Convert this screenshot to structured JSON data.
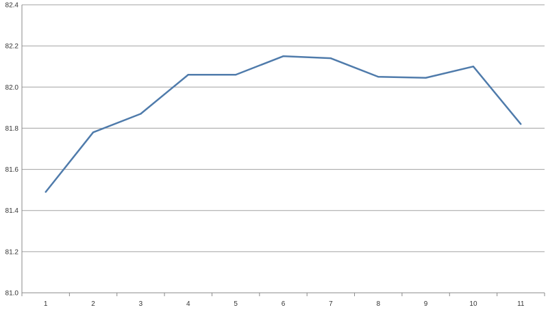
{
  "chart_data": {
    "type": "line",
    "title": "",
    "xlabel": "",
    "ylabel": "",
    "categories": [
      "1",
      "2",
      "3",
      "4",
      "5",
      "6",
      "7",
      "8",
      "9",
      "10",
      "11"
    ],
    "series": [
      {
        "values": [
          81.49,
          81.78,
          81.87,
          82.06,
          82.06,
          82.15,
          82.14,
          82.05,
          82.045,
          82.1,
          81.82
        ],
        "color": "#4f7bab"
      }
    ],
    "ylim": [
      81.0,
      82.4
    ],
    "yticks": [
      "81.0",
      "81.2",
      "81.4",
      "81.6",
      "81.8",
      "82.0",
      "82.2",
      "82.4"
    ],
    "grid": "horizontal",
    "legend": "none",
    "gridline_color": "#a0a0a0"
  }
}
